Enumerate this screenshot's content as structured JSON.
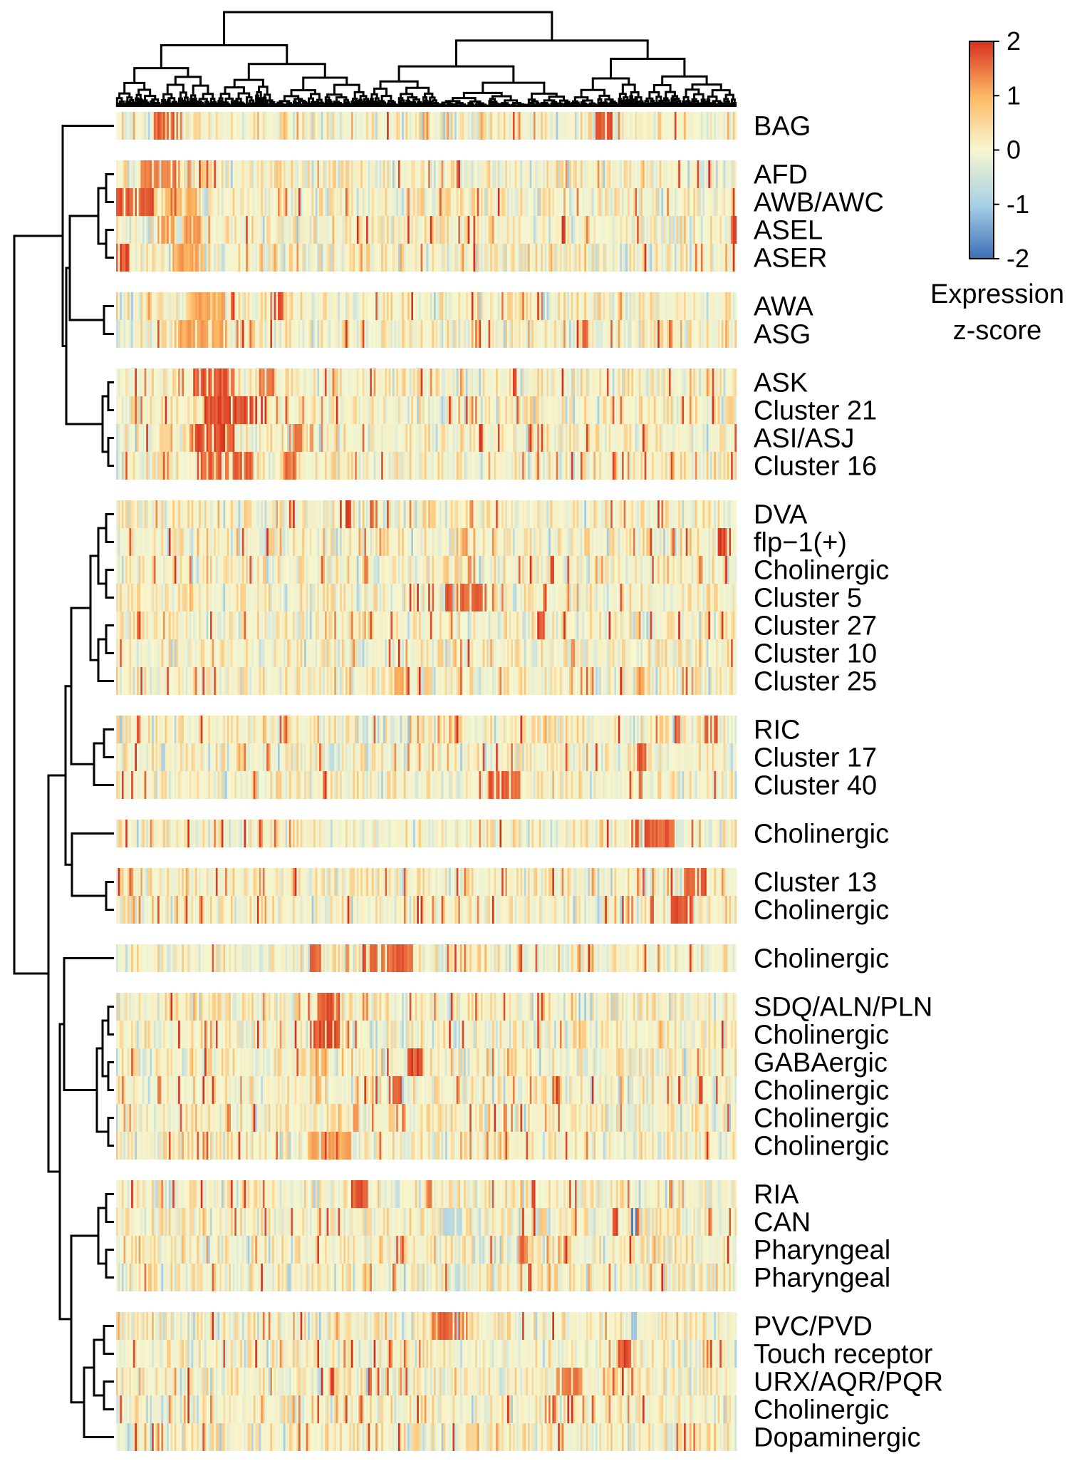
{
  "chart_data": {
    "type": "heatmap",
    "title": "",
    "xlabel": "",
    "ylabel": "",
    "n_columns": 330,
    "value_range": [
      -2,
      2
    ],
    "colorscale": [
      "#3b6fb6",
      "#a9d1e6",
      "#f7f7d0",
      "#fdb863",
      "#d7301f"
    ],
    "legend": {
      "placement": "top-right",
      "title_lines": [
        "Expression",
        "z-score"
      ],
      "ticks": [
        {
          "value": 2,
          "label": "2"
        },
        {
          "value": 1,
          "label": "1"
        },
        {
          "value": 0,
          "label": "0"
        },
        {
          "value": -1,
          "label": "-1"
        },
        {
          "value": -2,
          "label": "-2"
        }
      ]
    },
    "row_groups": [
      {
        "rows": [
          {
            "label": "BAG",
            "hot": [
              [
                0.06,
                0.11,
                1.8
              ],
              [
                0.77,
                0.8,
                2.0
              ]
            ]
          }
        ]
      },
      {
        "rows": [
          {
            "label": "AFD",
            "hot": [
              [
                0.04,
                0.12,
                1.6
              ]
            ]
          },
          {
            "label": "AWB/AWC",
            "hot": [
              [
                0.0,
                0.06,
                1.9
              ],
              [
                0.08,
                0.13,
                1.2
              ]
            ]
          },
          {
            "label": "ASEL",
            "hot": [
              [
                0.06,
                0.14,
                1.4
              ],
              [
                0.99,
                1.0,
                2.0
              ]
            ]
          },
          {
            "label": "ASER",
            "hot": [
              [
                0.0,
                0.02,
                2.0
              ],
              [
                0.09,
                0.14,
                1.3
              ]
            ]
          }
        ]
      },
      {
        "rows": [
          {
            "label": "AWA",
            "hot": [
              [
                0.12,
                0.18,
                1.3
              ],
              [
                0.25,
                0.27,
                1.9
              ]
            ]
          },
          {
            "label": "ASG",
            "hot": [
              [
                0.1,
                0.18,
                1.3
              ],
              [
                0.75,
                0.76,
                2.0
              ]
            ]
          }
        ]
      },
      {
        "rows": [
          {
            "label": "ASK",
            "hot": [
              [
                0.12,
                0.19,
                1.9
              ],
              [
                0.23,
                0.25,
                1.7
              ]
            ]
          },
          {
            "label": "Cluster 21",
            "hot": [
              [
                0.14,
                0.23,
                2.0
              ]
            ]
          },
          {
            "label": "ASI/ASJ",
            "hot": [
              [
                0.12,
                0.19,
                2.0
              ],
              [
                0.28,
                0.3,
                1.6
              ]
            ]
          },
          {
            "label": "Cluster 16",
            "hot": [
              [
                0.13,
                0.22,
                1.8
              ],
              [
                0.27,
                0.29,
                1.7
              ]
            ]
          }
        ]
      },
      {
        "rows": [
          {
            "label": "DVA",
            "hot": [
              [
                0.36,
                0.38,
                2.0
              ],
              [
                0.41,
                0.42,
                1.8
              ],
              [
                0.57,
                0.58,
                1.5
              ]
            ]
          },
          {
            "label": "flp−1(+)",
            "hot": [
              [
                0.55,
                0.58,
                1.4
              ],
              [
                0.97,
                0.99,
                2.0
              ]
            ]
          },
          {
            "label": "Cholinergic",
            "hot": [
              [
                0.4,
                0.41,
                1.5
              ],
              [
                0.56,
                0.58,
                1.4
              ]
            ]
          },
          {
            "label": "Cluster 5",
            "hot": [
              [
                0.53,
                0.61,
                1.9
              ]
            ]
          },
          {
            "label": "Cluster 27",
            "hot": [
              [
                0.68,
                0.69,
                2.0
              ]
            ]
          },
          {
            "label": "Cluster 10",
            "hot": [
              [
                0.73,
                0.74,
                1.7
              ]
            ]
          },
          {
            "label": "Cluster 25",
            "hot": [
              [
                0.45,
                0.47,
                1.3
              ],
              [
                0.84,
                0.85,
                1.4
              ]
            ]
          }
        ]
      },
      {
        "rows": [
          {
            "label": "RIC",
            "hot": [
              [
                0.03,
                0.04,
                1.8
              ],
              [
                0.9,
                0.91,
                1.9
              ],
              [
                0.95,
                0.97,
                2.0
              ]
            ]
          },
          {
            "label": "Cluster 17",
            "hot": [
              [
                0.84,
                0.85,
                1.9
              ]
            ]
          },
          {
            "label": "Cluster 40",
            "hot": [
              [
                0.6,
                0.65,
                1.9
              ],
              [
                0.84,
                0.85,
                1.6
              ]
            ]
          }
        ]
      },
      {
        "rows": [
          {
            "label": "Cholinergic",
            "hot": [
              [
                0.83,
                0.9,
                1.9
              ]
            ]
          }
        ]
      },
      {
        "rows": [
          {
            "label": "Cluster 13",
            "hot": [
              [
                0.84,
                0.85,
                1.6
              ],
              [
                0.91,
                0.95,
                1.9
              ]
            ]
          },
          {
            "label": "Cholinergic",
            "hot": [
              [
                0.86,
                0.87,
                1.8
              ],
              [
                0.89,
                0.93,
                1.9
              ]
            ]
          }
        ]
      },
      {
        "rows": [
          {
            "label": "Cholinergic",
            "hot": [
              [
                0.31,
                0.33,
                1.8
              ],
              [
                0.37,
                0.38,
                1.5
              ],
              [
                0.41,
                0.48,
                1.8
              ]
            ]
          }
        ]
      },
      {
        "rows": [
          {
            "label": "SDQ/ALN/PLN",
            "hot": [
              [
                0.32,
                0.36,
                1.9
              ]
            ]
          },
          {
            "label": "Cholinergic",
            "hot": [
              [
                0.31,
                0.36,
                2.0
              ]
            ]
          },
          {
            "label": "GABAergic",
            "hot": [
              [
                0.47,
                0.5,
                2.0
              ],
              [
                0.32,
                0.34,
                1.3
              ]
            ]
          },
          {
            "label": "Cholinergic",
            "hot": [
              [
                0.44,
                0.46,
                1.8
              ],
              [
                0.32,
                0.33,
                1.2
              ]
            ]
          },
          {
            "label": "Cholinergic",
            "hot": [
              [
                0.45,
                0.47,
                1.7
              ],
              [
                0.38,
                0.39,
                1.3
              ]
            ]
          },
          {
            "label": "Cholinergic",
            "hot": [
              [
                0.31,
                0.38,
                1.3
              ]
            ]
          }
        ]
      },
      {
        "rows": [
          {
            "label": "RIA",
            "hot": [
              [
                0.38,
                0.41,
                1.9
              ],
              [
                0.5,
                0.51,
                1.7
              ]
            ]
          },
          {
            "label": "CAN",
            "hot": [
              [
                0.8,
                0.81,
                2.0
              ]
            ],
            "cold": [
              [
                0.52,
                0.56,
                -0.9
              ],
              [
                0.83,
                0.84,
                -2.0
              ]
            ]
          },
          {
            "label": "Pharyngeal",
            "hot": [
              [
                0.65,
                0.66,
                1.7
              ]
            ]
          },
          {
            "label": "Pharyngeal",
            "hot": [
              [
                0.66,
                0.67,
                1.9
              ]
            ]
          }
        ]
      },
      {
        "rows": [
          {
            "label": "PVC/PVD",
            "hot": [
              [
                0.51,
                0.56,
                1.8
              ]
            ],
            "cold": [
              [
                0.83,
                0.84,
                -1.3
              ]
            ]
          },
          {
            "label": "Touch receptor",
            "hot": [
              [
                0.81,
                0.83,
                2.0
              ]
            ]
          },
          {
            "label": "URX/AQR/PQR",
            "hot": [
              [
                0.71,
                0.75,
                1.6
              ]
            ]
          },
          {
            "label": "Cholinergic",
            "hot": [
              [
                0.69,
                0.71,
                1.8
              ]
            ]
          },
          {
            "label": "Dopaminergic",
            "hot": [
              [
                0.71,
                0.72,
                1.9
              ]
            ]
          }
        ]
      }
    ]
  }
}
